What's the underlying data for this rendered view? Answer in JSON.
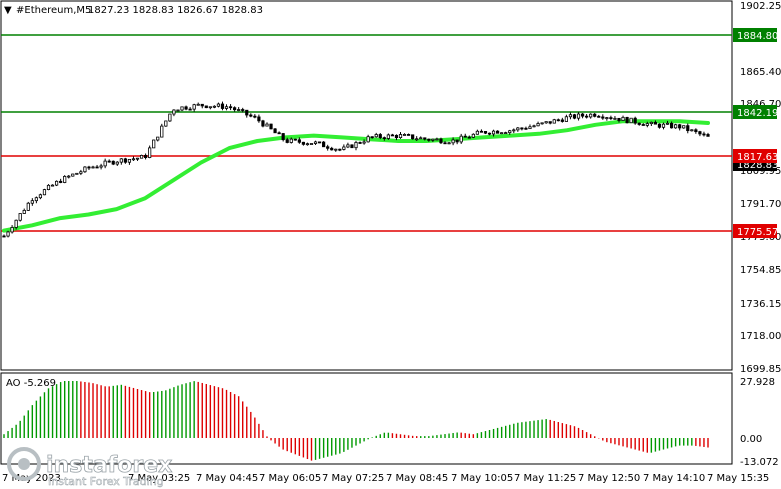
{
  "header": {
    "symbol": "#Ethereum,M5",
    "ohlc": "1827.23 1828.83 1826.67 1828.83"
  },
  "oscillator": {
    "label": "AO -5.269",
    "ticks": [
      "27.928",
      "0.00",
      "-13.072"
    ]
  },
  "price_axis": {
    "ticks": [
      "1902.25",
      "1865.40",
      "1846.70",
      "1809.95",
      "1791.70",
      "1773.60",
      "1754.85",
      "1736.15",
      "1718.00",
      "1699.85"
    ]
  },
  "time_axis": {
    "labels": [
      "7 May 2023",
      "7 May 03:25",
      "7 May 04:45",
      "7 May 06:05",
      "7 May 07:25",
      "7 May 08:45",
      "7 May 10:05",
      "7 May 11:25",
      "7 May 12:50",
      "7 May 14:10",
      "7 May 15:35"
    ]
  },
  "levels": [
    {
      "name": "level-1884",
      "label": "1884.80",
      "color": "#008000"
    },
    {
      "name": "level-1842",
      "label": "1842.19",
      "color": "#008000"
    },
    {
      "name": "level-current",
      "label": "1828.83",
      "color": "#000000"
    },
    {
      "name": "level-1817",
      "label": "1817.63",
      "color": "#e00000"
    },
    {
      "name": "level-1775",
      "label": "1775.57",
      "color": "#e00000"
    }
  ],
  "colors": {
    "ma": "#33ee33",
    "ao_up": "#009900",
    "ao_down": "#dd0000",
    "grid": "#000000"
  },
  "watermark": {
    "brand": "instaforex",
    "tagline": "Instant Forex Trading"
  },
  "chart_data": {
    "type": "candlestick",
    "price_range": [
      1699.85,
      1902.25
    ],
    "ma_approx": [
      1777,
      1780,
      1784,
      1786,
      1789,
      1795,
      1805,
      1815,
      1823,
      1827,
      1829,
      1830,
      1829,
      1828,
      1827,
      1827,
      1828,
      1829,
      1830,
      1831,
      1833,
      1836,
      1838,
      1838,
      1838,
      1837
    ],
    "close_approx": [
      1774,
      1795,
      1805,
      1812,
      1816,
      1818,
      1845,
      1847,
      1846,
      1839,
      1827,
      1826,
      1822,
      1829,
      1830,
      1828,
      1827,
      1832,
      1833,
      1836,
      1840,
      1842,
      1839,
      1836,
      1835,
      1829
    ]
  }
}
